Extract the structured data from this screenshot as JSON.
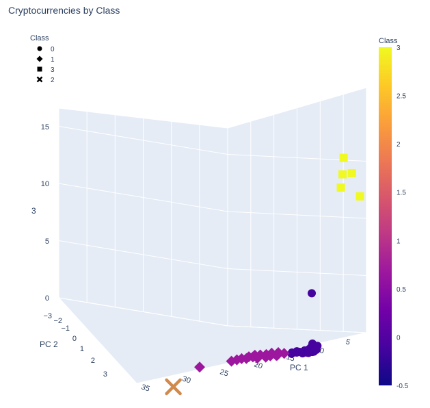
{
  "chart_data": {
    "type": "scatter",
    "title": "Cryptocurrencies by Class",
    "axes": {
      "x": {
        "label": "PC 1",
        "ticks": [
          5,
          10,
          15,
          20,
          25,
          30,
          35
        ],
        "range": [
          2,
          36
        ]
      },
      "y": {
        "label": "PC 2",
        "ticks": [
          -3,
          -2,
          -1,
          0,
          1,
          2,
          3
        ],
        "range": [
          -3,
          3.6
        ]
      },
      "z": {
        "label": "3",
        "ticks": [
          0,
          5,
          10,
          15
        ],
        "range": [
          -1,
          17
        ]
      }
    },
    "legend": {
      "title": "Class",
      "placement": "top-left",
      "entries": [
        {
          "label": "0",
          "symbol": "circle"
        },
        {
          "label": "1",
          "symbol": "diamond"
        },
        {
          "label": "3",
          "symbol": "square"
        },
        {
          "label": "2",
          "symbol": "x"
        }
      ]
    },
    "colorbar": {
      "title": "Class",
      "range": [
        -0.5,
        3
      ],
      "ticks": [
        "-0.5",
        "0",
        "0.5",
        "1",
        "1.5",
        "2",
        "2.5",
        "3"
      ],
      "colorscale": "plasma"
    },
    "series": [
      {
        "name": "0",
        "symbol": "circle",
        "color": "#46039f",
        "points": [
          [
            9.1,
            -1.6,
            4.9
          ],
          [
            9.6,
            -0.9,
            0.5
          ],
          [
            9.9,
            -0.6,
            0.2
          ],
          [
            10.2,
            -0.4,
            0.1
          ],
          [
            10.4,
            -0.3,
            0.2
          ],
          [
            10.6,
            -0.2,
            0.0
          ],
          [
            10.9,
            -0.1,
            0.1
          ],
          [
            11.2,
            0.0,
            0.0
          ],
          [
            11.6,
            -0.1,
            0.1
          ],
          [
            11.9,
            -0.2,
            0.0
          ],
          [
            12.3,
            -0.3,
            0.1
          ],
          [
            10.1,
            0.1,
            -0.1
          ],
          [
            10.6,
            0.2,
            -0.2
          ],
          [
            11.0,
            0.2,
            -0.1
          ],
          [
            10.5,
            0.4,
            -0.2
          ],
          [
            10.0,
            0.3,
            -0.1
          ],
          [
            9.3,
            -0.3,
            0.2
          ],
          [
            12.6,
            -0.4,
            0.2
          ],
          [
            13.3,
            -0.6,
            0.1
          ],
          [
            13.5,
            -0.3,
            0.2
          ],
          [
            12.9,
            -0.1,
            0.1
          ],
          [
            11.7,
            0.3,
            -0.1
          ],
          [
            12.1,
            0.1,
            -0.1
          ],
          [
            11.4,
            0.4,
            -0.2
          ]
        ]
      },
      {
        "name": "1",
        "symbol": "diamond",
        "color": "#9c179e",
        "points": [
          [
            14.6,
            -0.5,
            0.3
          ],
          [
            15.3,
            -0.8,
            0.5
          ],
          [
            15.8,
            -0.6,
            0.3
          ],
          [
            16.3,
            -0.9,
            0.6
          ],
          [
            16.7,
            -0.7,
            0.4
          ],
          [
            17.1,
            -1.0,
            0.6
          ],
          [
            17.5,
            -0.8,
            0.5
          ],
          [
            18.0,
            -1.1,
            0.7
          ],
          [
            18.4,
            -0.9,
            0.6
          ],
          [
            18.8,
            -1.2,
            0.8
          ],
          [
            19.3,
            -1.0,
            0.7
          ],
          [
            19.7,
            -1.3,
            0.8
          ],
          [
            20.2,
            -1.2,
            0.7
          ],
          [
            20.8,
            -1.4,
            0.8
          ],
          [
            21.5,
            -1.5,
            0.8
          ],
          [
            22.3,
            -1.6,
            0.8
          ],
          [
            16.0,
            -0.2,
            0.3
          ],
          [
            17.8,
            -0.3,
            0.4
          ],
          [
            19.0,
            -0.5,
            0.5
          ],
          [
            27.0,
            -2.2,
            1.0
          ]
        ]
      },
      {
        "name": "3",
        "symbol": "square",
        "color": "#f0f921",
        "points": [
          [
            3.6,
            -1.9,
            16.0
          ],
          [
            4.3,
            -1.3,
            14.6
          ],
          [
            3.2,
            -0.8,
            14.5
          ],
          [
            5.2,
            -0.6,
            13.5
          ],
          [
            2.4,
            -0.2,
            12.3
          ]
        ]
      },
      {
        "name": "2",
        "symbol": "x",
        "color": "#e16462",
        "points": [
          [
            35.0,
            2.0,
            0.0
          ]
        ]
      }
    ]
  }
}
